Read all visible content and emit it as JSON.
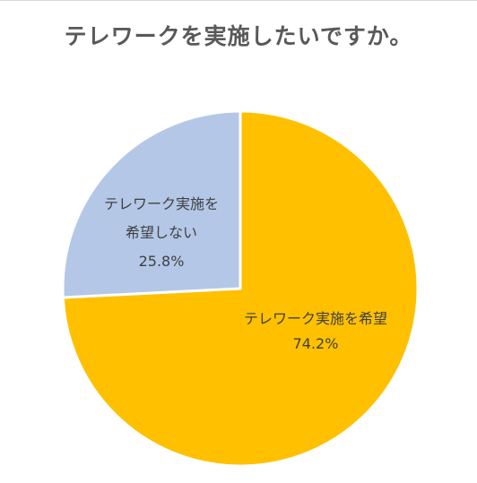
{
  "chart_data": {
    "type": "pie",
    "title": "テレワークを実施したいですか。",
    "slices": [
      {
        "label_lines": [
          "テレワーク実施を希望"
        ],
        "value": 74.2,
        "value_label": "74.2%",
        "color": "#FFC000"
      },
      {
        "label_lines": [
          "テレワーク実施を",
          "希望しない"
        ],
        "value": 25.8,
        "value_label": "25.8%",
        "color": "#B4C7E7"
      }
    ],
    "start_angle_deg": 0,
    "direction": "clockwise",
    "legend": "none"
  }
}
